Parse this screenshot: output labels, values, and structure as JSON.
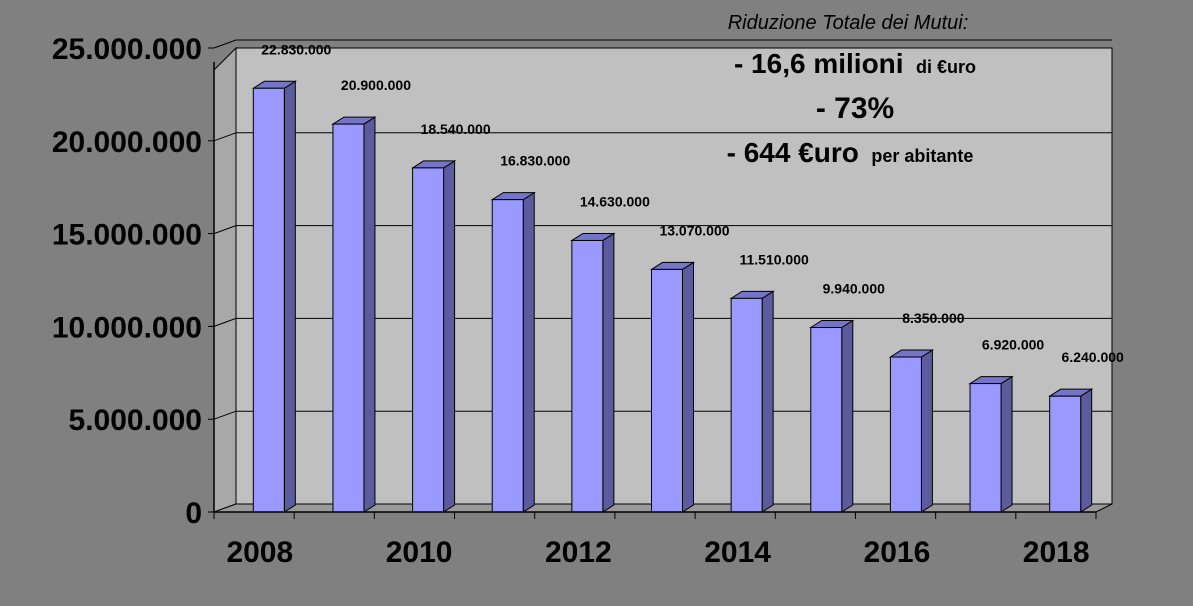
{
  "chart_data": {
    "type": "bar",
    "title": "",
    "xlabel": "",
    "ylabel": "",
    "ylim": [
      0,
      25000000
    ],
    "grid": true,
    "yticks": [
      "0",
      "5.000.000",
      "10.000.000",
      "15.000.000",
      "20.000.000",
      "25.000.000"
    ],
    "xticks": [
      "2008",
      "2010",
      "2012",
      "2014",
      "2016",
      "2018"
    ],
    "categories": [
      "2008",
      "2009",
      "2010",
      "2011",
      "2012",
      "2013",
      "2014",
      "2015",
      "2016",
      "2017",
      "2018"
    ],
    "values": [
      22830000,
      20900000,
      18540000,
      16830000,
      14630000,
      13070000,
      11510000,
      9940000,
      8350000,
      6920000,
      6240000
    ],
    "data_labels": [
      "22.830.000",
      "20.900.000",
      "18.540.000",
      "16.830.000",
      "14.630.000",
      "13.070.000",
      "11.510.000",
      "9.940.000",
      "8.350.000",
      "6.920.000",
      "6.240.000"
    ],
    "colors": {
      "bar_front": "#9999ff",
      "bar_side": "#5b5b9e",
      "bar_top": "#7575c8",
      "plot_wall": "#c0c0c0",
      "floor": "#9a9a9a",
      "page": "#808080"
    },
    "annotations": {
      "title": "Riduzione Totale dei Mutui:",
      "line1_main": "- 16,6 milioni",
      "line1_small": "di €uro",
      "line2": "- 73%",
      "line3_main": "- 644 €uro",
      "line3_small": "per abitante"
    }
  }
}
